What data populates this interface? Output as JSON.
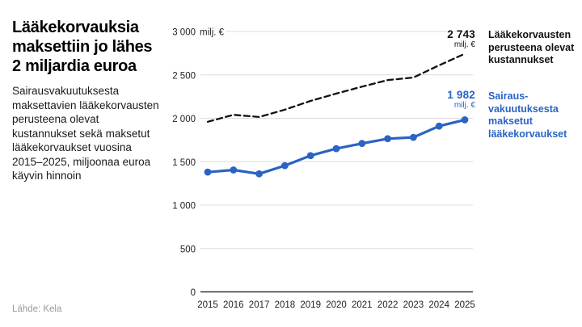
{
  "header": {
    "title": "Lääkekorvauksia\nmaksettiin jo lähes\n2 miljardia euroa",
    "subtitle": "Sairausvakuutuksesta\nmaksettavien lääkekorvausten\nperusteena olevat\nkustannukset sekä maksetut\nlääkekorvaukset vuosina\n2015–2025, miljoonaa euroa\nkäyvin hinnoin",
    "source": "Lähde: Kela"
  },
  "colors": {
    "costs_line": "#111111",
    "reimbursements_line": "#2a63c4",
    "gridline": "#dcdcdc",
    "axis": "#333333",
    "tick_text": "#222222"
  },
  "chart_data": {
    "type": "line",
    "title": "Lääkekorvauksia maksettiin jo lähes 2 miljardia euroa",
    "categories": [
      "2015",
      "2016",
      "2017",
      "2018",
      "2019",
      "2020",
      "2021",
      "2022",
      "2023",
      "2024",
      "2025"
    ],
    "series": [
      {
        "name": "Lääkekorvausten perusteena olevat kustannukset",
        "style": "dashed",
        "color": "#111111",
        "values": [
          1960,
          2040,
          2015,
          2100,
          2200,
          2285,
          2365,
          2440,
          2470,
          2610,
          2743
        ],
        "end_label": {
          "value": "2 743",
          "unit": "milj. €"
        },
        "legend": "Lääkekorvausten\nperusteena olevat\nkustannukset"
      },
      {
        "name": "Sairausvakuutuksesta maksetut lääkekorvaukset",
        "style": "solid-markers",
        "color": "#2a63c4",
        "values": [
          1380,
          1405,
          1360,
          1455,
          1570,
          1650,
          1710,
          1765,
          1780,
          1910,
          1982
        ],
        "end_label": {
          "value": "1 982",
          "unit": "milj. €"
        },
        "legend": "Sairaus-\nvakuutuksesta\nmaksetut\nlääkekorvaukset"
      }
    ],
    "y_axis": {
      "min": 0,
      "max": 3000,
      "step": 500,
      "unit": "milj. €",
      "tick_labels": [
        "0",
        "500",
        "1 000",
        "1 500",
        "2 000",
        "2 500",
        "3 000"
      ]
    },
    "xlabel": "",
    "ylabel": "milj. €",
    "grid": true,
    "legend_position": "right"
  }
}
